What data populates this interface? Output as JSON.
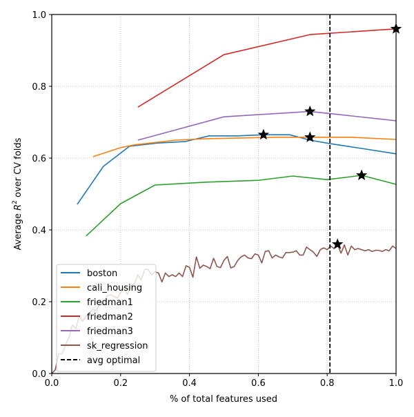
{
  "chart_data": {
    "type": "line",
    "title": "",
    "xlabel": "% of total features used",
    "ylabel_prefix": "Average ",
    "ylabel_math": "R",
    "ylabel_sup": "2",
    "ylabel_suffix": " over CV folds",
    "xlim": [
      0.0,
      1.0
    ],
    "ylim": [
      0.0,
      1.0
    ],
    "xticks": [
      0.0,
      0.2,
      0.4,
      0.6,
      0.8,
      1.0
    ],
    "yticks": [
      0.0,
      0.2,
      0.4,
      0.6,
      0.8,
      1.0
    ],
    "xtick_labels": [
      "0.0",
      "0.2",
      "0.4",
      "0.6",
      "0.8",
      "1.0"
    ],
    "ytick_labels": [
      "0.0",
      "0.2",
      "0.4",
      "0.6",
      "0.8",
      "1.0"
    ],
    "grid": true,
    "legend_position": "lower-left",
    "series": [
      {
        "name": "boston",
        "color": "#1f77b4",
        "x": [
          0.074,
          0.15,
          0.226,
          0.307,
          0.387,
          0.457,
          0.54,
          0.615,
          0.691,
          0.75,
          0.81,
          0.9,
          1.0
        ],
        "y": [
          0.471,
          0.577,
          0.633,
          0.642,
          0.646,
          0.662,
          0.662,
          0.665,
          0.665,
          0.65,
          0.64,
          0.627,
          0.612
        ],
        "optimal": {
          "x": 0.615,
          "y": 0.665
        }
      },
      {
        "name": "cali_housing",
        "color": "#ff7f0e",
        "x": [
          0.12,
          0.2,
          0.24,
          0.36,
          0.45,
          0.65,
          0.75,
          0.87,
          1.0
        ],
        "y": [
          0.604,
          0.629,
          0.637,
          0.65,
          0.654,
          0.658,
          0.658,
          0.658,
          0.652
        ],
        "optimal": {
          "x": 0.75,
          "y": 0.658
        }
      },
      {
        "name": "friedman1",
        "color": "#2ca02c",
        "x": [
          0.1,
          0.2,
          0.3,
          0.45,
          0.6,
          0.7,
          0.8,
          0.9,
          1.0
        ],
        "y": [
          0.383,
          0.473,
          0.525,
          0.533,
          0.538,
          0.55,
          0.54,
          0.552,
          0.527
        ],
        "optimal": {
          "x": 0.9,
          "y": 0.552
        }
      },
      {
        "name": "friedman2",
        "color": "#d62728",
        "x": [
          0.25,
          0.5,
          0.75,
          1.0
        ],
        "y": [
          0.742,
          0.888,
          0.944,
          0.96
        ],
        "optimal": {
          "x": 1.0,
          "y": 0.96
        }
      },
      {
        "name": "friedman3",
        "color": "#9467bd",
        "x": [
          0.25,
          0.5,
          0.75,
          1.0
        ],
        "y": [
          0.65,
          0.715,
          0.73,
          0.704
        ],
        "optimal": {
          "x": 0.75,
          "y": 0.73
        }
      },
      {
        "name": "sk_regression",
        "color": "#8c564b",
        "x": [
          0.0,
          0.01,
          0.02,
          0.03,
          0.04,
          0.05,
          0.06,
          0.07,
          0.08,
          0.09,
          0.1,
          0.11,
          0.12,
          0.13,
          0.14,
          0.15,
          0.16,
          0.17,
          0.18,
          0.19,
          0.2,
          0.21,
          0.22,
          0.23,
          0.24,
          0.25,
          0.26,
          0.27,
          0.28,
          0.29,
          0.3,
          0.31,
          0.32,
          0.33,
          0.34,
          0.35,
          0.36,
          0.37,
          0.38,
          0.39,
          0.4,
          0.41,
          0.42,
          0.43,
          0.44,
          0.45,
          0.46,
          0.47,
          0.48,
          0.49,
          0.5,
          0.51,
          0.52,
          0.53,
          0.54,
          0.55,
          0.56,
          0.57,
          0.58,
          0.59,
          0.6,
          0.61,
          0.62,
          0.63,
          0.64,
          0.65,
          0.66,
          0.67,
          0.68,
          0.69,
          0.7,
          0.71,
          0.72,
          0.73,
          0.74,
          0.75,
          0.76,
          0.77,
          0.78,
          0.79,
          0.8,
          0.81,
          0.82,
          0.83,
          0.84,
          0.85,
          0.86,
          0.87,
          0.88,
          0.89,
          0.9,
          0.91,
          0.92,
          0.93,
          0.94,
          0.95,
          0.96,
          0.97,
          0.98,
          0.99,
          1.0
        ],
        "y": [
          0.0,
          0.01,
          0.055,
          0.055,
          0.08,
          0.1,
          0.135,
          0.125,
          0.16,
          0.145,
          0.16,
          0.17,
          0.18,
          0.175,
          0.2,
          0.19,
          0.215,
          0.22,
          0.215,
          0.21,
          0.225,
          0.24,
          0.22,
          0.245,
          0.25,
          0.275,
          0.26,
          0.29,
          0.29,
          0.275,
          0.283,
          0.28,
          0.255,
          0.28,
          0.27,
          0.275,
          0.27,
          0.28,
          0.27,
          0.3,
          0.296,
          0.268,
          0.325,
          0.293,
          0.302,
          0.298,
          0.292,
          0.321,
          0.298,
          0.295,
          0.315,
          0.326,
          0.294,
          0.298,
          0.315,
          0.325,
          0.33,
          0.322,
          0.32,
          0.333,
          0.33,
          0.308,
          0.34,
          0.342,
          0.322,
          0.33,
          0.325,
          0.322,
          0.337,
          0.337,
          0.338,
          0.342,
          0.33,
          0.33,
          0.352,
          0.345,
          0.338,
          0.326,
          0.345,
          0.35,
          0.345,
          0.355,
          0.348,
          0.36,
          0.335,
          0.358,
          0.33,
          0.355,
          0.345,
          0.348,
          0.345,
          0.342,
          0.345,
          0.34,
          0.343,
          0.343,
          0.34,
          0.345,
          0.342,
          0.355,
          0.348
        ],
        "optimal": {
          "x": 0.83,
          "y": 0.36
        }
      }
    ],
    "vline": {
      "name": "avg optimal",
      "x": 0.808,
      "color": "#000000",
      "style": "dashed"
    },
    "legend_entries": [
      "boston",
      "cali_housing",
      "friedman1",
      "friedman2",
      "friedman3",
      "sk_regression",
      "avg optimal"
    ]
  }
}
